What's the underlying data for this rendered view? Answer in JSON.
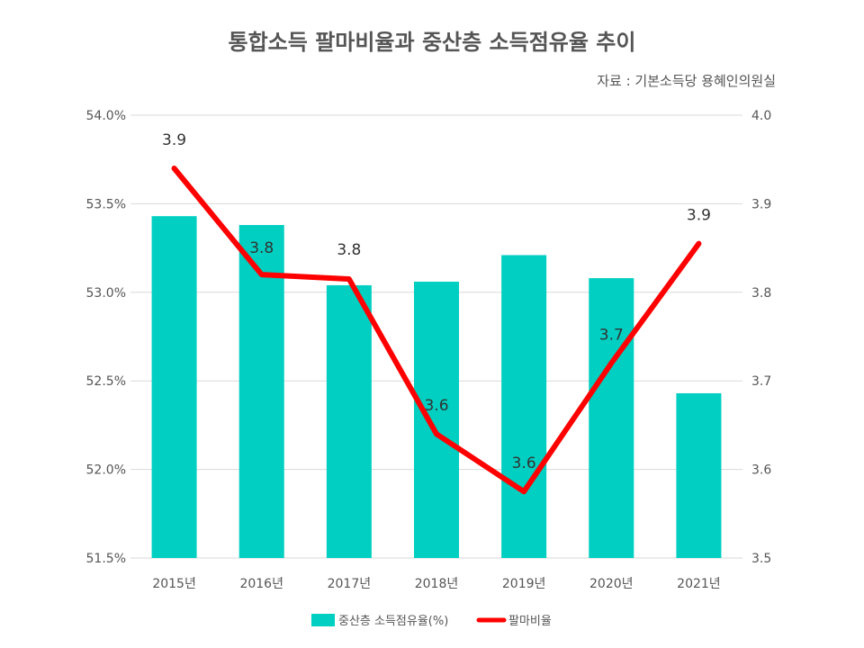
{
  "chart_data": {
    "type": "bar+line",
    "title": "통합소득 팔마비율과 중산층 소득점유율 추이",
    "source": "자료 : 기본소득당 용혜인의원실",
    "categories": [
      "2015년",
      "2016년",
      "2017년",
      "2018년",
      "2019년",
      "2020년",
      "2021년"
    ],
    "series": [
      {
        "name": "중산층 소득점유율(%)",
        "type": "bar",
        "axis": "left",
        "color": "#00CFC1",
        "values": [
          53.43,
          53.38,
          53.04,
          53.06,
          53.21,
          53.08,
          52.43
        ]
      },
      {
        "name": "팔마비율",
        "type": "line",
        "axis": "right",
        "color": "#FF0000",
        "values": [
          3.94,
          3.82,
          3.815,
          3.64,
          3.575,
          3.72,
          3.855
        ],
        "data_labels": [
          "3.9",
          "3.8",
          "3.8",
          "3.6",
          "3.6",
          "3.7",
          "3.9"
        ]
      }
    ],
    "y_left": {
      "ylim": [
        51.5,
        54.0
      ],
      "ticks": [
        "51.5%",
        "52.0%",
        "52.5%",
        "53.0%",
        "53.5%",
        "54.0%"
      ]
    },
    "y_right": {
      "ylim": [
        3.5,
        4.0
      ],
      "ticks": [
        "3.5",
        "3.6",
        "3.7",
        "3.8",
        "3.9",
        "4.0"
      ]
    },
    "grid": true,
    "legend": "bottom"
  }
}
